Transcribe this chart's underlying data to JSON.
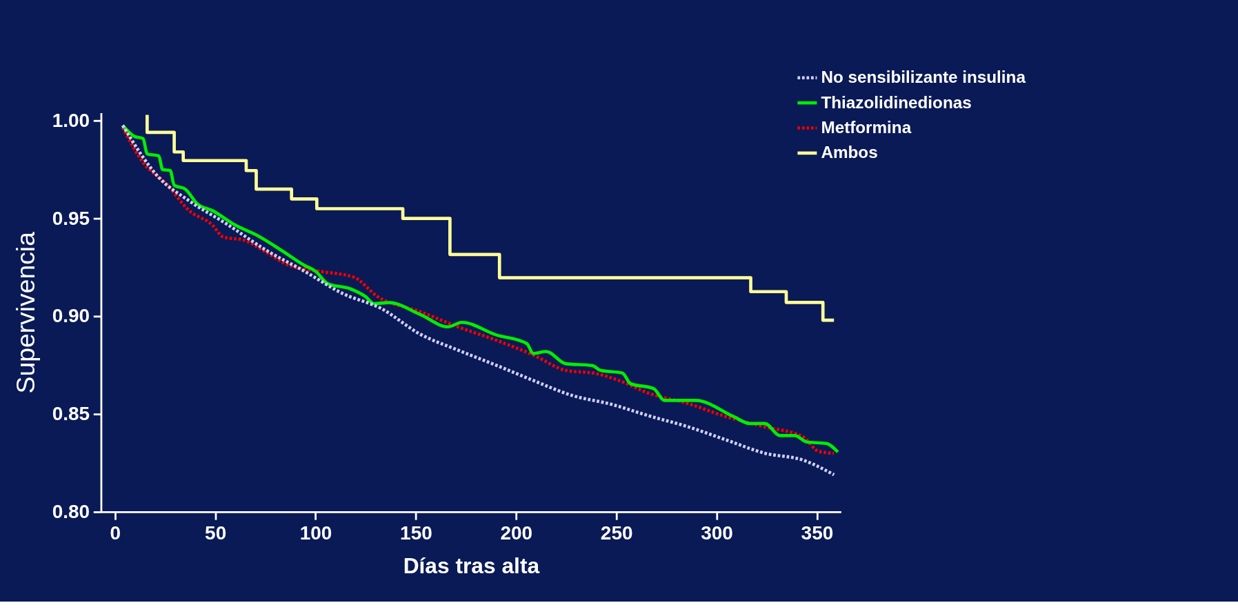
{
  "chart_data": {
    "type": "line",
    "xlabel": "Días tras alta",
    "ylabel": "Supervivencia",
    "xlim": [
      -7,
      362
    ],
    "xticks": [
      0,
      50,
      100,
      150,
      200,
      250,
      300,
      350
    ],
    "ylim": [
      0.8,
      1.004
    ],
    "yticks": [
      {
        "value": 0.8,
        "label": "0.80"
      },
      {
        "value": 0.85,
        "label": "0.85"
      },
      {
        "value": 0.9,
        "label": "0.90"
      },
      {
        "value": 0.95,
        "label": "0.95"
      },
      {
        "value": 1.0,
        "label": "1.00"
      }
    ],
    "grid": false,
    "legend": "top right",
    "marker": "none",
    "series": [
      {
        "name": "No sensibilizante insulina",
        "type": "line",
        "line_style": "dotted",
        "color": "#d0d0f4",
        "x": [
          3.8,
          21.8,
          37,
          56,
          75,
          94.5,
          113.6,
          132.7,
          151.9,
          171,
          190,
          209,
          228,
          247.5,
          266.6,
          285.8,
          305,
          324,
          343,
          358.5
        ],
        "values": [
          0.9976,
          0.971,
          0.959,
          0.947,
          0.934,
          0.923,
          0.9116,
          0.904,
          0.891,
          0.8827,
          0.875,
          0.867,
          0.8595,
          0.855,
          0.849,
          0.8435,
          0.8367,
          0.83,
          0.8265,
          0.819
        ]
      },
      {
        "name": "Thiazolidinedionas",
        "type": "line",
        "line_style": "solid",
        "color": "#00ee00",
        "x": [
          3.8,
          9.6,
          14,
          16,
          21.8,
          23.7,
          27.5,
          29.5,
          35,
          41,
          48.6,
          60,
          71.5,
          83,
          94.5,
          100,
          106,
          117.4,
          125,
          129,
          136.6,
          152,
          166,
          173,
          190,
          205.4,
          208.5,
          215,
          224.6,
          238,
          242,
          253,
          257,
          268.6,
          274,
          289.6,
          308.7,
          316.4,
          324,
          331.7,
          339,
          345,
          354.6,
          360.4
        ],
        "values": [
          0.9976,
          0.992,
          0.9908,
          0.983,
          0.982,
          0.975,
          0.9745,
          0.967,
          0.965,
          0.9575,
          0.954,
          0.9466,
          0.941,
          0.9337,
          0.926,
          0.923,
          0.9167,
          0.914,
          0.91,
          0.9065,
          0.907,
          0.901,
          0.8946,
          0.8969,
          0.8905,
          0.886,
          0.881,
          0.882,
          0.8758,
          0.8748,
          0.8724,
          0.871,
          0.8656,
          0.863,
          0.857,
          0.857,
          0.8486,
          0.8452,
          0.8452,
          0.839,
          0.839,
          0.8357,
          0.835,
          0.8306
        ]
      },
      {
        "name": "Metformina",
        "type": "line",
        "line_style": "dotted",
        "color": "#ee0000",
        "x": [
          3.8,
          14,
          25.6,
          37,
          48.6,
          54,
          64,
          75,
          87,
          102,
          119,
          131,
          152,
          171,
          190,
          209,
          224.6,
          240,
          251,
          266.6,
          285.8,
          305,
          324,
          343,
          350.8,
          358.5
        ],
        "values": [
          0.9966,
          0.9786,
          0.9677,
          0.954,
          0.9466,
          0.9405,
          0.939,
          0.933,
          0.926,
          0.923,
          0.92,
          0.91,
          0.9024,
          0.8946,
          0.8878,
          0.88,
          0.8724,
          0.8707,
          0.8673,
          0.8605,
          0.8554,
          0.8486,
          0.8435,
          0.8384,
          0.831,
          0.83
        ]
      },
      {
        "name": "Ambos",
        "type": "step",
        "line_style": "solid",
        "color": "#ffff99",
        "x": [
          16,
          16,
          29.5,
          34,
          65.4,
          70.4,
          88,
          100.6,
          143.5,
          167,
          191.7,
          317,
          334.7,
          353,
          358.5
        ],
        "values": [
          1.003,
          0.994,
          0.984,
          0.9796,
          0.9745,
          0.965,
          0.96,
          0.955,
          0.95,
          0.9316,
          0.9197,
          0.9126,
          0.9071,
          0.898,
          0.898
        ]
      }
    ]
  }
}
